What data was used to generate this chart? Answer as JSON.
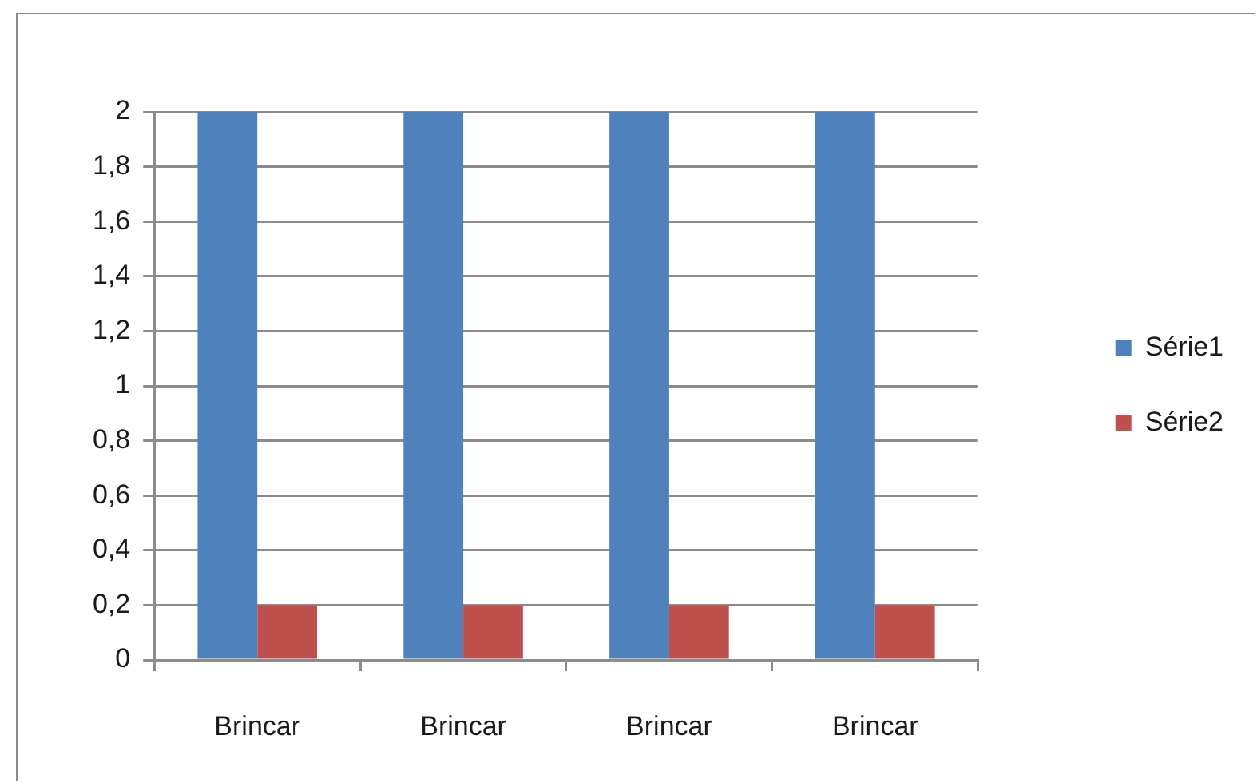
{
  "chart_data": {
    "type": "bar",
    "categories": [
      "Brincar",
      "Brincar",
      "Brincar",
      "Brincar"
    ],
    "series": [
      {
        "name": "Série1",
        "color": "#4f81bd",
        "values": [
          2,
          2,
          2,
          2
        ]
      },
      {
        "name": "Série2",
        "color": "#c0504d",
        "values": [
          0.2,
          0.2,
          0.2,
          0.2
        ]
      }
    ],
    "ylim": [
      0,
      2
    ],
    "yticks": [
      0,
      {
        "value": 0.2,
        "label": "0,2"
      },
      {
        "value": 0.4,
        "label": "0,4"
      },
      {
        "value": 0.6,
        "label": "0,6"
      },
      {
        "value": 0.8,
        "label": "0,8"
      },
      1,
      {
        "value": 1.2,
        "label": "1,2"
      },
      {
        "value": 1.4,
        "label": "1,4"
      },
      {
        "value": 1.6,
        "label": "1,6"
      },
      {
        "value": 1.8,
        "label": "1,8"
      },
      2
    ],
    "grid": "y",
    "legend": "right"
  }
}
